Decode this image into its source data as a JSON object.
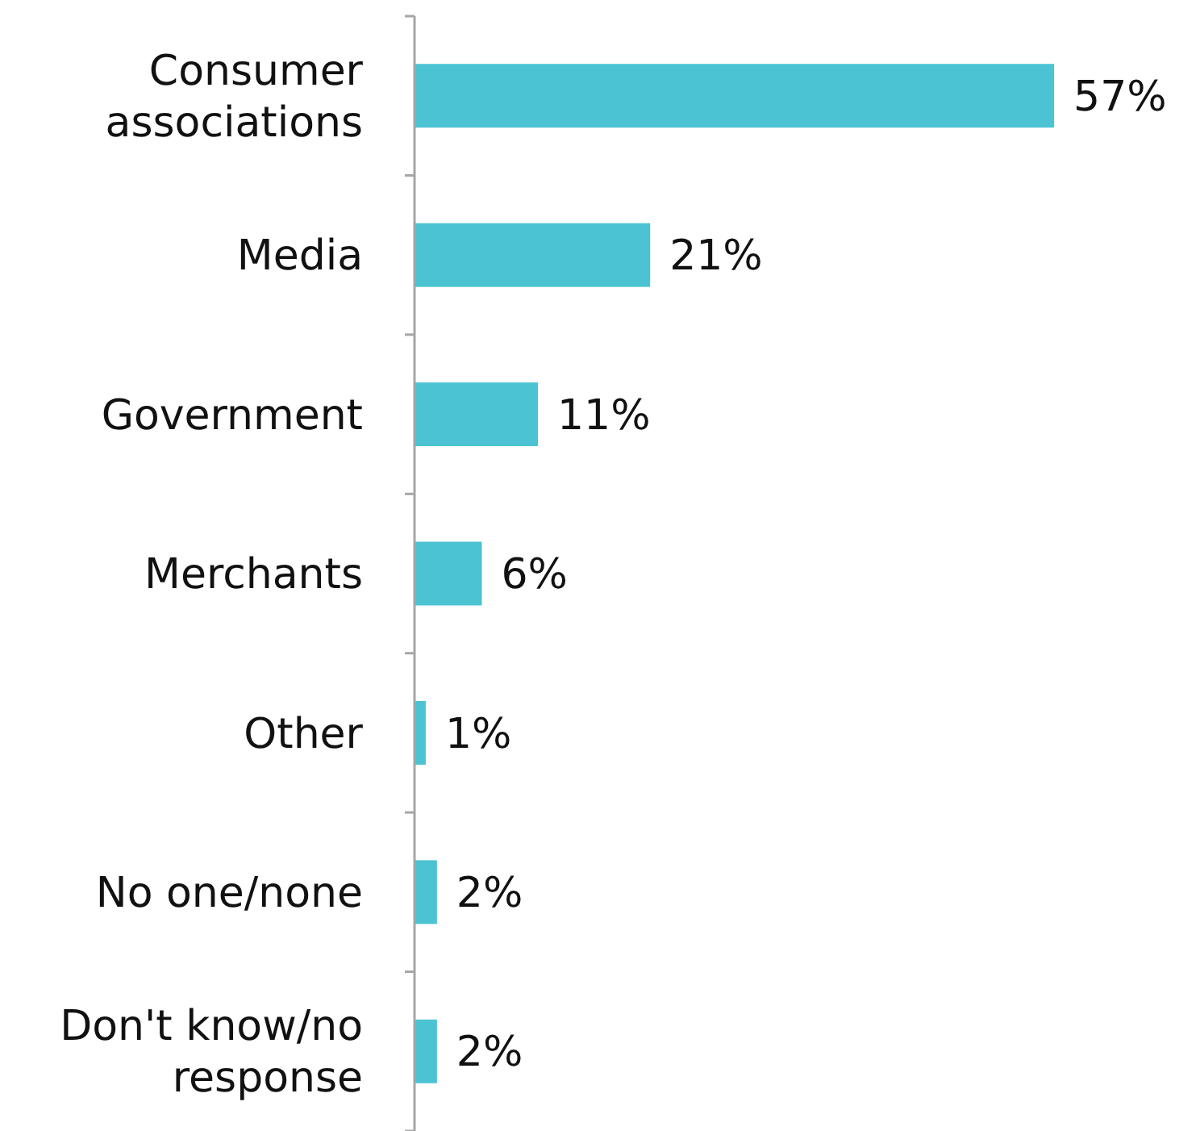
{
  "chart_data": {
    "type": "bar",
    "orientation": "horizontal",
    "categories": [
      "Consumer associations",
      "Media",
      "Government",
      "Merchants",
      "Other",
      "No one/none",
      "Don't know/no response"
    ],
    "values": [
      57,
      21,
      11,
      6,
      1,
      2,
      2
    ],
    "value_labels": [
      "57%",
      "21%",
      "11%",
      "6%",
      "1%",
      "2%",
      "2%"
    ],
    "color": "#4bc3d3",
    "xlim": [
      0,
      70
    ],
    "tick_labels": "y"
  }
}
